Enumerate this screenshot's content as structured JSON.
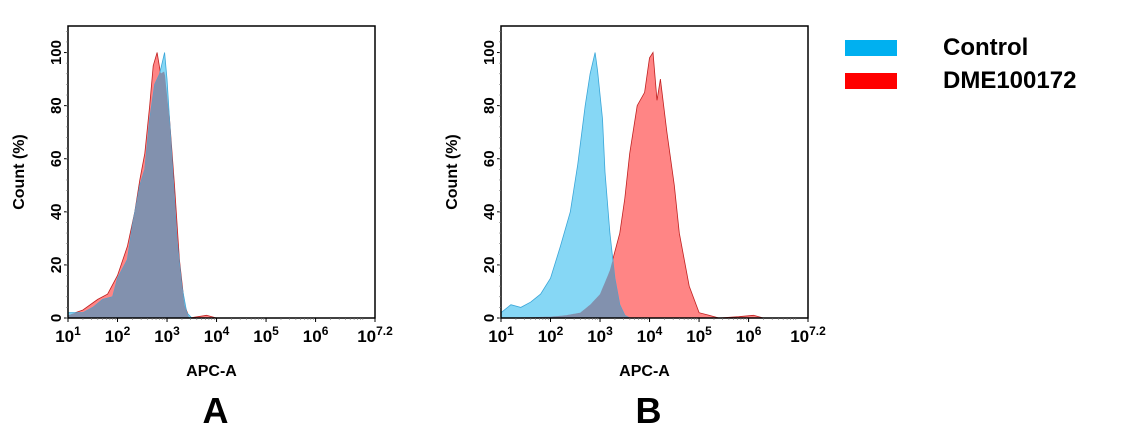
{
  "legend": {
    "items": [
      {
        "label": "Control",
        "color": "#00b0f0"
      },
      {
        "label": "DME100172",
        "color": "#ff0000"
      }
    ],
    "placement": "top-right"
  },
  "colors": {
    "control_fill": "#86d7f5",
    "control_line": "#3aa6d8",
    "sample_fill": "#ff8585",
    "sample_line": "#c02020",
    "overlap_fill": "#8291ae"
  },
  "chart_data": [
    {
      "type": "area",
      "panel_label": "A",
      "xlabel": "APC-A",
      "ylabel": "Count (%)",
      "xscale": "log",
      "xlim_log10": [
        1,
        7.2
      ],
      "ylim": [
        0,
        110
      ],
      "xticks": [
        {
          "base": "10",
          "exp": "1"
        },
        {
          "base": "10",
          "exp": "2"
        },
        {
          "base": "10",
          "exp": "3"
        },
        {
          "base": "10",
          "exp": "4"
        },
        {
          "base": "10",
          "exp": "5"
        },
        {
          "base": "10",
          "exp": "6"
        },
        {
          "base": "10",
          "exp": "7.2"
        }
      ],
      "yticks": [
        "0",
        "20",
        "40",
        "60",
        "80",
        "100"
      ],
      "series": [
        {
          "name": "Control",
          "x_log10": [
            1.0,
            1.3,
            1.5,
            1.7,
            1.9,
            2.0,
            2.2,
            2.3,
            2.45,
            2.55,
            2.65,
            2.75,
            2.85,
            2.95,
            3.0,
            3.1,
            3.2,
            3.3,
            3.4,
            3.5,
            7.2
          ],
          "y": [
            2,
            2,
            4,
            7,
            8,
            15,
            22,
            35,
            50,
            56,
            75,
            88,
            92,
            100,
            90,
            60,
            30,
            12,
            2,
            0,
            0
          ]
        },
        {
          "name": "DME100172",
          "x_log10": [
            1.0,
            1.3,
            1.6,
            1.8,
            2.0,
            2.2,
            2.35,
            2.45,
            2.55,
            2.65,
            2.72,
            2.8,
            2.87,
            2.95,
            3.05,
            3.15,
            3.25,
            3.35,
            3.45,
            3.8,
            4.0,
            7.2
          ],
          "y": [
            1,
            3,
            7,
            9,
            16,
            27,
            40,
            52,
            62,
            80,
            95,
            100,
            92,
            93,
            75,
            50,
            22,
            5,
            0,
            1,
            0,
            0
          ]
        }
      ]
    },
    {
      "type": "area",
      "panel_label": "B",
      "xlabel": "APC-A",
      "ylabel": "Count (%)",
      "xscale": "log",
      "xlim_log10": [
        1,
        7.2
      ],
      "ylim": [
        0,
        110
      ],
      "xticks": [
        {
          "base": "10",
          "exp": "1"
        },
        {
          "base": "10",
          "exp": "2"
        },
        {
          "base": "10",
          "exp": "3"
        },
        {
          "base": "10",
          "exp": "4"
        },
        {
          "base": "10",
          "exp": "5"
        },
        {
          "base": "10",
          "exp": "6"
        },
        {
          "base": "10",
          "exp": "7.2"
        }
      ],
      "yticks": [
        "0",
        "20",
        "40",
        "60",
        "80",
        "100"
      ],
      "series": [
        {
          "name": "Control",
          "x_log10": [
            1.0,
            1.2,
            1.4,
            1.6,
            1.8,
            2.0,
            2.2,
            2.4,
            2.55,
            2.7,
            2.8,
            2.9,
            2.95,
            3.05,
            3.1,
            3.2,
            3.3,
            3.4,
            3.5,
            3.6,
            7.2
          ],
          "y": [
            2,
            5,
            4,
            6,
            9,
            15,
            27,
            40,
            58,
            80,
            92,
            100,
            93,
            75,
            55,
            32,
            15,
            5,
            1,
            0,
            0
          ]
        },
        {
          "name": "DME100172",
          "x_log10": [
            1.0,
            2.0,
            2.3,
            2.6,
            2.8,
            3.0,
            3.2,
            3.4,
            3.5,
            3.6,
            3.75,
            3.9,
            4.0,
            4.07,
            4.15,
            4.22,
            4.35,
            4.5,
            4.6,
            4.8,
            5.0,
            5.2,
            5.4,
            5.8,
            6.1,
            6.3,
            7.2
          ],
          "y": [
            0,
            0.5,
            1,
            2,
            5,
            9,
            18,
            32,
            45,
            62,
            80,
            85,
            98,
            100,
            82,
            90,
            70,
            50,
            32,
            12,
            2,
            1,
            0,
            0.5,
            1,
            0,
            0
          ]
        }
      ]
    }
  ]
}
